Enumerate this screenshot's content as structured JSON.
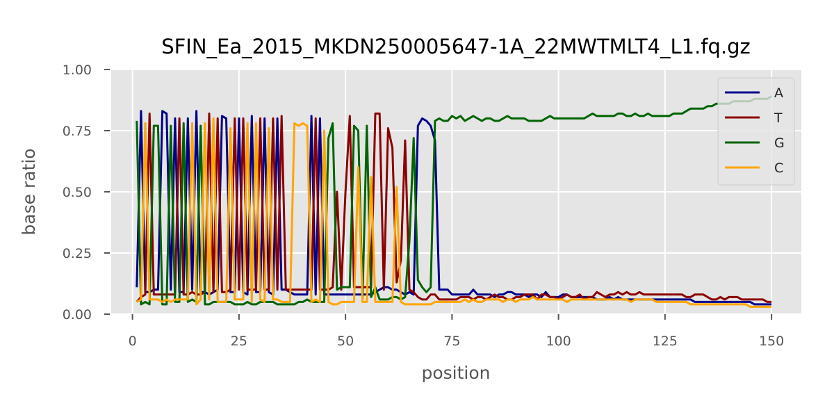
{
  "chart_data": {
    "type": "line",
    "title": "SFIN_Ea_2015_MKDN250005647-1A_22MWTMLT4_L1.fq.gz",
    "xlabel": "position",
    "ylabel": "base ratio",
    "xlim": [
      -5,
      157
    ],
    "ylim": [
      0,
      1
    ],
    "xticks": [
      0,
      25,
      50,
      75,
      100,
      125,
      150
    ],
    "yticks": [
      0.0,
      0.25,
      0.5,
      0.75,
      1.0
    ],
    "xtick_labels": [
      "0",
      "25",
      "50",
      "75",
      "100",
      "125",
      "150"
    ],
    "ytick_labels": [
      "0.00",
      "0.25",
      "0.50",
      "0.75",
      "1.00"
    ],
    "grid": true,
    "legend_position": "top-right",
    "x": [
      1,
      2,
      3,
      4,
      5,
      6,
      7,
      8,
      9,
      10,
      11,
      12,
      13,
      14,
      15,
      16,
      17,
      18,
      19,
      20,
      21,
      22,
      23,
      24,
      25,
      26,
      27,
      28,
      29,
      30,
      31,
      32,
      33,
      34,
      35,
      36,
      37,
      38,
      39,
      40,
      41,
      42,
      43,
      44,
      45,
      46,
      47,
      48,
      49,
      50,
      51,
      52,
      53,
      54,
      55,
      56,
      57,
      58,
      59,
      60,
      61,
      62,
      63,
      64,
      65,
      66,
      67,
      68,
      69,
      70,
      71,
      72,
      73,
      74,
      75,
      76,
      77,
      78,
      79,
      80,
      81,
      82,
      83,
      84,
      85,
      86,
      87,
      88,
      89,
      90,
      91,
      92,
      93,
      94,
      95,
      96,
      97,
      98,
      99,
      100,
      101,
      102,
      103,
      104,
      105,
      106,
      107,
      108,
      109,
      110,
      111,
      112,
      113,
      114,
      115,
      116,
      117,
      118,
      119,
      120,
      121,
      122,
      123,
      124,
      125,
      126,
      127,
      128,
      129,
      130,
      131,
      132,
      133,
      134,
      135,
      136,
      137,
      138,
      139,
      140,
      141,
      142,
      143,
      144,
      145,
      146,
      147,
      148,
      149,
      150
    ],
    "series": [
      {
        "name": "A",
        "color": "#00008b",
        "values": [
          0.11,
          0.83,
          0.09,
          0.09,
          0.1,
          0.1,
          0.83,
          0.82,
          0.1,
          0.8,
          0.09,
          0.09,
          0.8,
          0.1,
          0.83,
          0.09,
          0.09,
          0.08,
          0.09,
          0.1,
          0.81,
          0.8,
          0.09,
          0.09,
          0.8,
          0.09,
          0.08,
          0.81,
          0.09,
          0.09,
          0.8,
          0.09,
          0.08,
          0.8,
          0.1,
          0.1,
          0.09,
          0.08,
          0.08,
          0.08,
          0.08,
          0.81,
          0.08,
          0.8,
          0.08,
          0.08,
          0.08,
          0.08,
          0.08,
          0.08,
          0.08,
          0.08,
          0.08,
          0.08,
          0.08,
          0.08,
          0.09,
          0.1,
          0.11,
          0.11,
          0.1,
          0.1,
          0.09,
          0.08,
          0.09,
          0.08,
          0.77,
          0.8,
          0.79,
          0.77,
          0.71,
          0.1,
          0.1,
          0.1,
          0.08,
          0.08,
          0.08,
          0.08,
          0.08,
          0.1,
          0.08,
          0.08,
          0.08,
          0.08,
          0.07,
          0.08,
          0.08,
          0.09,
          0.09,
          0.08,
          0.08,
          0.08,
          0.07,
          0.08,
          0.08,
          0.07,
          0.09,
          0.07,
          0.07,
          0.07,
          0.08,
          0.08,
          0.07,
          0.07,
          0.07,
          0.07,
          0.07,
          0.07,
          0.06,
          0.06,
          0.06,
          0.07,
          0.06,
          0.07,
          0.06,
          0.06,
          0.06,
          0.06,
          0.06,
          0.06,
          0.06,
          0.06,
          0.06,
          0.06,
          0.06,
          0.06,
          0.06,
          0.06,
          0.06,
          0.06,
          0.06,
          0.05,
          0.05,
          0.05,
          0.05,
          0.05,
          0.05,
          0.05,
          0.05,
          0.05,
          0.05,
          0.05,
          0.05,
          0.05,
          0.05,
          0.04,
          0.04,
          0.04,
          0.04,
          0.04
        ]
      },
      {
        "name": "T",
        "color": "#8b0000",
        "values": [
          0.05,
          0.07,
          0.08,
          0.82,
          0.08,
          0.08,
          0.08,
          0.08,
          0.08,
          0.08,
          0.8,
          0.08,
          0.08,
          0.09,
          0.08,
          0.08,
          0.09,
          0.82,
          0.09,
          0.8,
          0.09,
          0.09,
          0.1,
          0.8,
          0.1,
          0.8,
          0.1,
          0.1,
          0.1,
          0.8,
          0.1,
          0.1,
          0.8,
          0.1,
          0.81,
          0.1,
          0.1,
          0.1,
          0.1,
          0.1,
          0.1,
          0.1,
          0.8,
          0.1,
          0.1,
          0.1,
          0.11,
          0.5,
          0.1,
          0.5,
          0.81,
          0.11,
          0.11,
          0.11,
          0.11,
          0.11,
          0.82,
          0.82,
          0.1,
          0.76,
          0.68,
          0.13,
          0.22,
          0.71,
          0.1,
          0.09,
          0.07,
          0.06,
          0.06,
          0.08,
          0.08,
          0.06,
          0.06,
          0.06,
          0.06,
          0.06,
          0.07,
          0.07,
          0.07,
          0.06,
          0.07,
          0.07,
          0.06,
          0.07,
          0.08,
          0.07,
          0.07,
          0.06,
          0.06,
          0.07,
          0.07,
          0.08,
          0.08,
          0.08,
          0.06,
          0.08,
          0.08,
          0.07,
          0.07,
          0.06,
          0.07,
          0.08,
          0.07,
          0.07,
          0.08,
          0.06,
          0.07,
          0.07,
          0.09,
          0.08,
          0.07,
          0.08,
          0.08,
          0.09,
          0.08,
          0.09,
          0.08,
          0.08,
          0.09,
          0.08,
          0.08,
          0.08,
          0.08,
          0.08,
          0.08,
          0.08,
          0.08,
          0.08,
          0.08,
          0.07,
          0.07,
          0.08,
          0.08,
          0.08,
          0.07,
          0.06,
          0.06,
          0.07,
          0.06,
          0.07,
          0.07,
          0.07,
          0.06,
          0.06,
          0.06,
          0.06,
          0.06,
          0.06,
          0.05,
          0.05
        ]
      },
      {
        "name": "G",
        "color": "#006400",
        "values": [
          0.79,
          0.04,
          0.05,
          0.04,
          0.77,
          0.77,
          0.04,
          0.04,
          0.77,
          0.05,
          0.05,
          0.78,
          0.05,
          0.06,
          0.05,
          0.77,
          0.04,
          0.04,
          0.05,
          0.05,
          0.05,
          0.05,
          0.05,
          0.04,
          0.04,
          0.04,
          0.05,
          0.04,
          0.04,
          0.05,
          0.05,
          0.05,
          0.05,
          0.04,
          0.04,
          0.04,
          0.04,
          0.04,
          0.05,
          0.05,
          0.06,
          0.05,
          0.05,
          0.05,
          0.05,
          0.72,
          0.78,
          0.1,
          0.11,
          0.11,
          0.11,
          0.77,
          0.75,
          0.06,
          0.77,
          0.07,
          0.11,
          0.06,
          0.06,
          0.06,
          0.07,
          0.07,
          0.06,
          0.07,
          0.3,
          0.72,
          0.14,
          0.11,
          0.09,
          0.11,
          0.79,
          0.8,
          0.79,
          0.79,
          0.81,
          0.8,
          0.81,
          0.79,
          0.8,
          0.81,
          0.8,
          0.79,
          0.8,
          0.8,
          0.79,
          0.79,
          0.8,
          0.81,
          0.8,
          0.8,
          0.8,
          0.8,
          0.79,
          0.79,
          0.79,
          0.79,
          0.8,
          0.81,
          0.8,
          0.8,
          0.8,
          0.8,
          0.8,
          0.8,
          0.8,
          0.8,
          0.81,
          0.82,
          0.81,
          0.81,
          0.81,
          0.81,
          0.81,
          0.82,
          0.82,
          0.81,
          0.81,
          0.82,
          0.81,
          0.81,
          0.82,
          0.81,
          0.81,
          0.81,
          0.81,
          0.81,
          0.82,
          0.82,
          0.82,
          0.83,
          0.84,
          0.84,
          0.84,
          0.84,
          0.85,
          0.85,
          0.86,
          0.86,
          0.86,
          0.86,
          0.87,
          0.87,
          0.87,
          0.87,
          0.87,
          0.88,
          0.88,
          0.88,
          0.88,
          0.89
        ]
      },
      {
        "name": "C",
        "color": "#ffa500",
        "values": [
          0.05,
          0.06,
          0.78,
          0.06,
          0.06,
          0.06,
          0.05,
          0.06,
          0.05,
          0.06,
          0.06,
          0.06,
          0.06,
          0.78,
          0.04,
          0.06,
          0.78,
          0.06,
          0.8,
          0.05,
          0.05,
          0.05,
          0.76,
          0.06,
          0.06,
          0.06,
          0.78,
          0.05,
          0.78,
          0.06,
          0.05,
          0.76,
          0.06,
          0.06,
          0.05,
          0.05,
          0.05,
          0.78,
          0.77,
          0.78,
          0.77,
          0.05,
          0.06,
          0.05,
          0.75,
          0.05,
          0.04,
          0.04,
          0.05,
          0.05,
          0.05,
          0.05,
          0.6,
          0.05,
          0.05,
          0.56,
          0.05,
          0.05,
          0.05,
          0.05,
          0.05,
          0.52,
          0.05,
          0.04,
          0.04,
          0.04,
          0.04,
          0.04,
          0.04,
          0.04,
          0.05,
          0.05,
          0.05,
          0.05,
          0.05,
          0.05,
          0.05,
          0.06,
          0.05,
          0.06,
          0.05,
          0.05,
          0.06,
          0.06,
          0.06,
          0.06,
          0.05,
          0.06,
          0.06,
          0.05,
          0.06,
          0.06,
          0.06,
          0.07,
          0.06,
          0.06,
          0.06,
          0.06,
          0.06,
          0.06,
          0.06,
          0.05,
          0.06,
          0.06,
          0.06,
          0.06,
          0.06,
          0.06,
          0.06,
          0.06,
          0.06,
          0.06,
          0.06,
          0.06,
          0.06,
          0.06,
          0.05,
          0.06,
          0.06,
          0.06,
          0.06,
          0.06,
          0.05,
          0.05,
          0.05,
          0.05,
          0.05,
          0.05,
          0.05,
          0.05,
          0.04,
          0.04,
          0.04,
          0.04,
          0.04,
          0.04,
          0.04,
          0.04,
          0.04,
          0.04,
          0.04,
          0.04,
          0.04,
          0.04,
          0.03,
          0.03,
          0.03,
          0.03,
          0.03,
          0.03
        ]
      }
    ]
  }
}
